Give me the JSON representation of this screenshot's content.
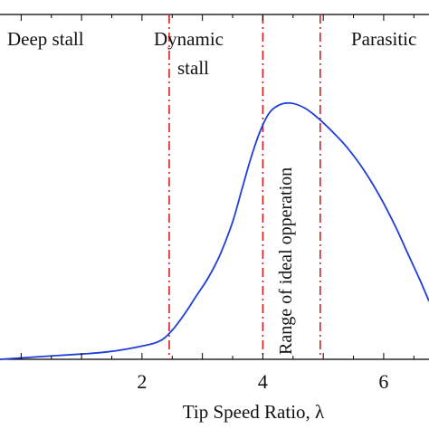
{
  "chart_data": {
    "type": "line",
    "xlabel": "Tip Speed Ratio,  λ",
    "ylabel": "",
    "xlim": [
      -0.35,
      6.75
    ],
    "ylim": [
      0,
      1
    ],
    "x_ticks": [
      2,
      4,
      6
    ],
    "grid": false,
    "line_color": "#1f3fd6",
    "divider_color": "#d62020",
    "region_labels": [
      {
        "text": "Deep stall"
      },
      {
        "text": "Dynamic"
      },
      {
        "text": "stall"
      },
      {
        "text": "Parasitic"
      }
    ],
    "annotation": "Range of ideal opperation",
    "dividers": [
      2.45,
      4.0,
      4.95
    ],
    "series": [
      {
        "x": [
          -0.35,
          0.3,
          1.0,
          1.5,
          2.0,
          2.3,
          2.5,
          2.7,
          2.9,
          3.1,
          3.3,
          3.5,
          3.65,
          3.8,
          3.95,
          4.1,
          4.25,
          4.4,
          4.55,
          4.7,
          4.85,
          5.0,
          5.2,
          5.4,
          5.6,
          5.8,
          6.0,
          6.2,
          6.4,
          6.6,
          6.75
        ],
        "y": [
          0.0,
          0.01,
          0.02,
          0.03,
          0.05,
          0.07,
          0.11,
          0.17,
          0.24,
          0.31,
          0.4,
          0.52,
          0.64,
          0.76,
          0.86,
          0.93,
          0.96,
          0.97,
          0.965,
          0.95,
          0.925,
          0.895,
          0.85,
          0.8,
          0.74,
          0.67,
          0.59,
          0.5,
          0.4,
          0.3,
          0.22
        ]
      }
    ]
  }
}
